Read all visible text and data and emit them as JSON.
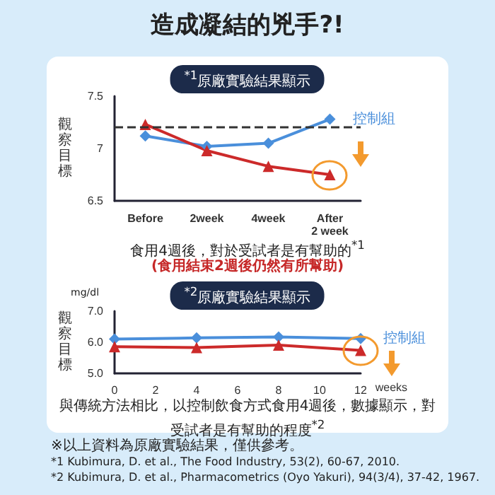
{
  "chart_data": [
    {
      "type": "line",
      "title": "造成凝結的兇手?!",
      "subtitle": "$^{*1}$原廠實驗結果顯示",
      "ylabel": "觀察目標",
      "categories": [
        "Before",
        "2week",
        "4week",
        "After\n2 week"
      ],
      "series": [
        {
          "name": "控制組",
          "color": "#4a8fdb",
          "marker": "diamond",
          "values": [
            7.12,
            7.02,
            7.05,
            7.28
          ]
        },
        {
          "color": "#cc2a2a",
          "marker": "triangle",
          "values": [
            7.23,
            6.98,
            6.83,
            6.75
          ]
        }
      ],
      "ylim": [
        6.5,
        7.5
      ],
      "yticks": [
        6.5,
        7,
        7.5
      ],
      "grid": false,
      "legend": false,
      "line_style": "solid",
      "ref_lines": [
        {
          "axis": "y",
          "value": 7.2,
          "color": "#333333",
          "line_style": "dashed"
        }
      ],
      "annotations": [
        "食用4週後，對於受試者是有幫助的$^{*1}$",
        "(食用結束2週後仍然有所幫助)"
      ]
    },
    {
      "type": "line",
      "title": "$^{*2}$原廠實驗結果顯示",
      "ylabel": "觀察目標",
      "xlabel": "weeks",
      "x": [
        0,
        4,
        8,
        12
      ],
      "series": [
        {
          "name": "控制組",
          "color": "#4a8fdb",
          "marker": "diamond",
          "values": [
            6.1,
            6.14,
            6.17,
            6.12
          ]
        },
        {
          "color": "#cc2a2a",
          "marker": "triangle",
          "values": [
            5.86,
            5.83,
            5.91,
            5.74
          ]
        }
      ],
      "xlim": [
        0,
        12
      ],
      "xticks": [
        0,
        2,
        4,
        6,
        8,
        10,
        12
      ],
      "ylim": [
        5.0,
        7.0
      ],
      "yticks": [
        {
          "value": 5,
          "label": "5.0"
        },
        {
          "value": 6,
          "label": "6.0"
        },
        {
          "value": 7,
          "label": "7.0"
        }
      ],
      "grid": false,
      "legend": false,
      "line_style": "solid",
      "annotations": [
        "mg/dl",
        "與傳統方法相比，以控制飲食方式食用4週後，數據顯示，對受試者是有幫助的程度$^{*2}$",
        "※以上資料為原廠實驗結果，僅供參考。",
        "*1 Kubimura, D. et al., The Food Industry, 53(2), 60-67, 2010.",
        "*2 Kubimura, D. et al., Pharmacometrics (Oyo Yakuri), 94(3/4), 37-42, 1967."
      ]
    }
  ]
}
